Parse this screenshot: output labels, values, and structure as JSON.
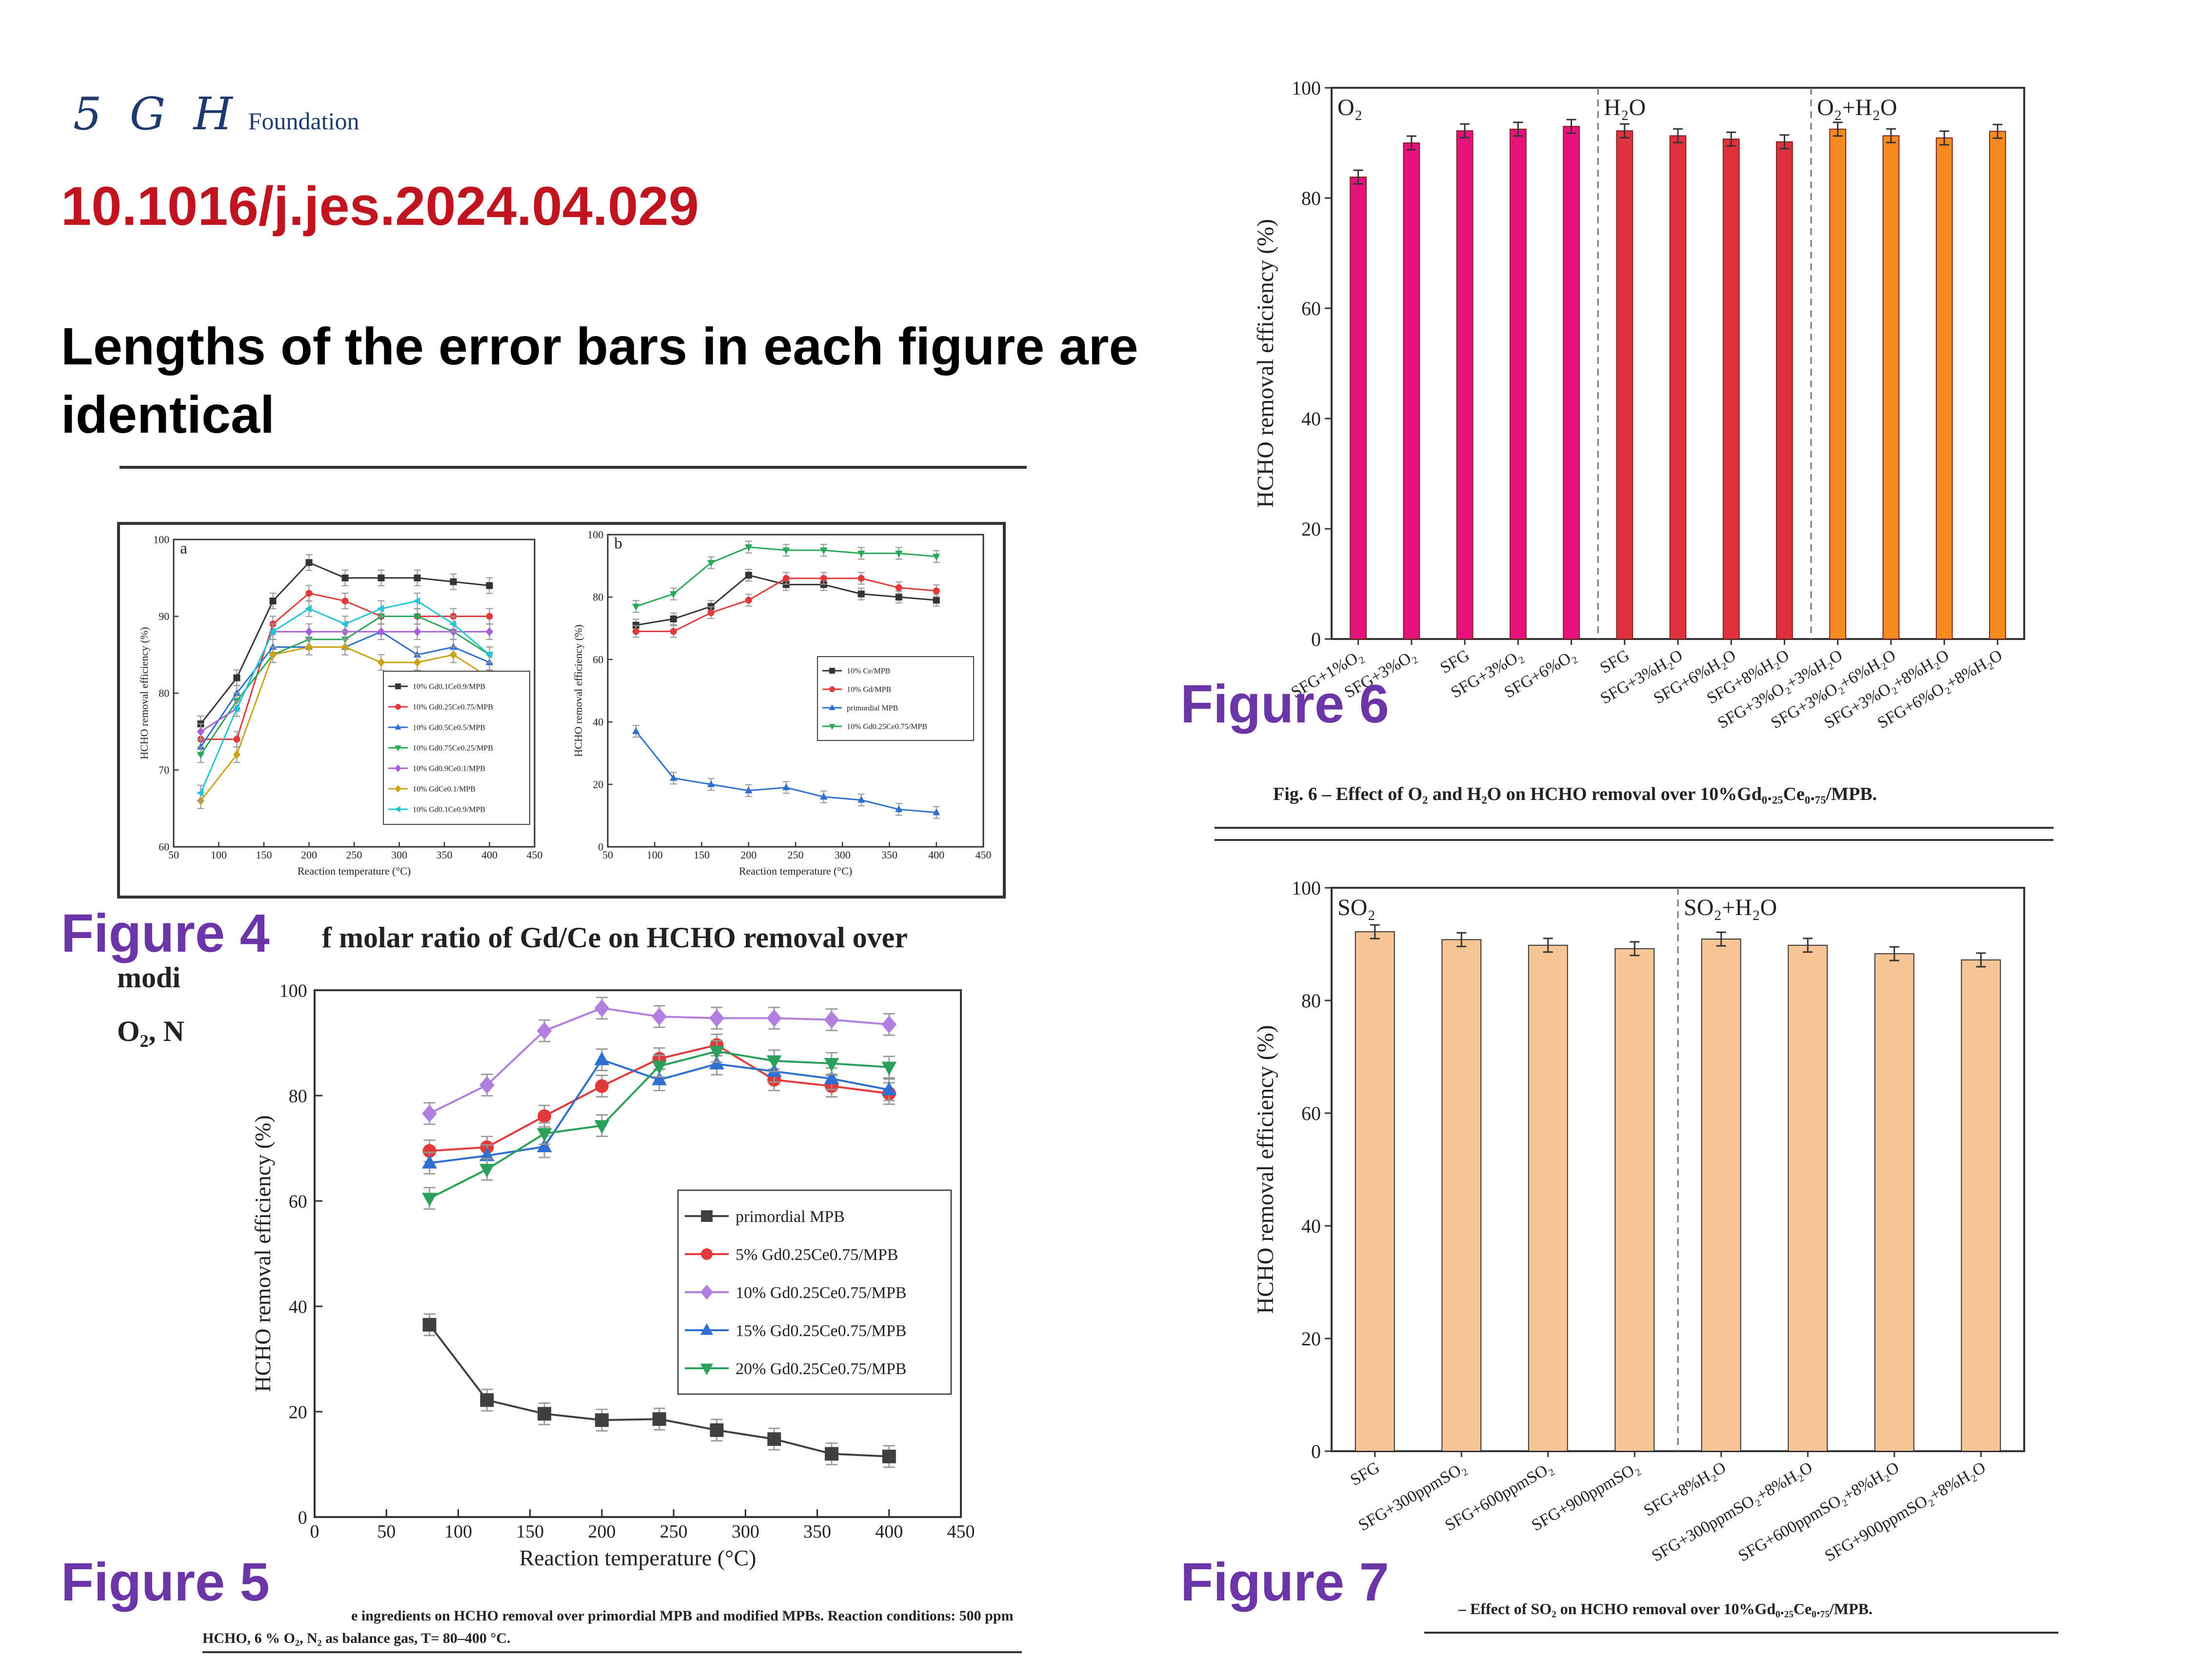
{
  "header": {
    "logo_mark": "5 G H",
    "logo_text": "Foundation",
    "doi": "10.1016/j.jes.2024.04.029",
    "headline": "Lengths of the error bars in each figure are identical"
  },
  "labels": {
    "fig4": "Figure 4",
    "fig5": "Figure 5",
    "fig6": "Figure 6",
    "fig7": "Figure 7"
  },
  "captions": {
    "fig4_partial_1": "f molar ratio of Gd/Ce on HCHO removal over",
    "fig4_partial_2": "modi",
    "fig4_partial_3": "O₂, N",
    "fig5_1": "e ingredients on HCHO removal over primordial MPB and modified MPBs. Reaction conditions: 500 ppm",
    "fig5_2": "HCHO, 6 % O₂, N₂ as balance gas, T= 80–400 °C.",
    "fig6": "Fig. 6 – Effect of O₂ and H₂O on HCHO removal over 10%Gd₀.₂₅Ce₀.₇₅/MPB.",
    "fig7": "– Effect of SO₂ on HCHO removal over 10%Gd₀.₂₅Ce₀.₇₅/MPB."
  },
  "colors": {
    "doi": "#c0141e",
    "figure_label": "#6b35a8",
    "fig6_o2": "#e8127c",
    "fig6_h2o": "#e0303c",
    "fig6_o2h2o": "#f58a1f",
    "fig7_bar": "#f8c596"
  },
  "chart_data": [
    {
      "id": "fig4a",
      "type": "line",
      "panel_label": "a",
      "xlabel": "Reaction temperature (°C)",
      "ylabel": "HCHO removal efficiency (%)",
      "xlim": [
        50,
        450
      ],
      "ylim": [
        60,
        100
      ],
      "xticks": [
        50,
        100,
        150,
        200,
        250,
        300,
        350,
        400,
        450
      ],
      "yticks": [
        60,
        70,
        80,
        90,
        100
      ],
      "x": [
        80,
        120,
        160,
        200,
        240,
        280,
        320,
        360,
        400
      ],
      "legend_position": "lower-right",
      "series": [
        {
          "name": "10% Gd0.1Ce0.9/MPB",
          "color": "#333333",
          "marker": "square",
          "values": [
            76,
            82,
            92,
            97,
            95,
            95,
            95,
            94.5,
            94
          ]
        },
        {
          "name": "10% Gd0.25Ce0.75/MPB",
          "color": "#e23a3a",
          "marker": "circle",
          "values": [
            74,
            74,
            89,
            93,
            92,
            90,
            90,
            90,
            90
          ]
        },
        {
          "name": "10% Gd0.5Ce0.5/MPB",
          "color": "#2f6fd0",
          "marker": "triangle",
          "values": [
            73,
            80,
            86,
            86,
            86,
            88,
            85,
            86,
            84
          ]
        },
        {
          "name": "10% Gd0.75Ce0.25/MPB",
          "color": "#2aa85a",
          "marker": "triangle-down",
          "values": [
            72,
            79,
            85,
            87,
            87,
            90,
            90,
            88,
            85
          ]
        },
        {
          "name": "10% Gd0.9Ce0.1/MPB",
          "color": "#a65fd6",
          "marker": "diamond",
          "values": [
            75,
            78,
            88,
            88,
            88,
            88,
            88,
            88,
            88
          ]
        },
        {
          "name": "10% GdCe0.1/MPB",
          "color": "#c9a41a",
          "marker": "diamond",
          "values": [
            66,
            72,
            85,
            86,
            86,
            84,
            84,
            85,
            82
          ]
        },
        {
          "name": "10% Gd0.1Ce0.9/MPB",
          "color": "#22c5d6",
          "marker": "triangle-left",
          "values": [
            67,
            78,
            88,
            91,
            89,
            91,
            92,
            89,
            85
          ]
        }
      ]
    },
    {
      "id": "fig4b",
      "type": "line",
      "panel_label": "b",
      "xlabel": "Reaction temperature (°C)",
      "ylabel": "HCHO removal efficiency (%)",
      "xlim": [
        50,
        450
      ],
      "ylim": [
        0,
        100
      ],
      "xticks": [
        50,
        100,
        150,
        200,
        250,
        300,
        350,
        400,
        450
      ],
      "yticks": [
        0,
        20,
        40,
        60,
        80,
        100
      ],
      "x": [
        80,
        120,
        160,
        200,
        240,
        280,
        320,
        360,
        400
      ],
      "legend_position": "right",
      "series": [
        {
          "name": "10% Ce/MPB",
          "color": "#333333",
          "marker": "square",
          "values": [
            71,
            73,
            77,
            87,
            84,
            84,
            81,
            80,
            79
          ]
        },
        {
          "name": "10% Gd/MPB",
          "color": "#e23a3a",
          "marker": "circle",
          "values": [
            69,
            69,
            75,
            79,
            86,
            86,
            86,
            83,
            82
          ]
        },
        {
          "name": "primordial MPB",
          "color": "#2f6fd0",
          "marker": "triangle",
          "values": [
            37,
            22,
            20,
            18,
            19,
            16,
            15,
            12,
            11
          ]
        },
        {
          "name": "10% Gd0.25Ce0.75/MPB",
          "color": "#2aa85a",
          "marker": "triangle-down",
          "values": [
            77,
            81,
            91,
            96,
            95,
            95,
            94,
            94,
            93
          ]
        }
      ]
    },
    {
      "id": "fig5",
      "type": "line",
      "xlabel": "Reaction temperature (°C)",
      "ylabel": "HCHO removal efficiency (%)",
      "xlim": [
        0,
        450
      ],
      "ylim": [
        0,
        100
      ],
      "xticks": [
        0,
        50,
        100,
        150,
        200,
        250,
        300,
        350,
        400,
        450
      ],
      "yticks": [
        0,
        20,
        40,
        60,
        80,
        100
      ],
      "x": [
        80,
        120,
        160,
        200,
        240,
        280,
        320,
        360,
        400
      ],
      "legend_position": "right",
      "series": [
        {
          "name": "primordial MPB",
          "color": "#404040",
          "marker": "square",
          "values": [
            36.5,
            22.2,
            19.6,
            18.4,
            18.6,
            16.5,
            14.8,
            12.0,
            11.5
          ]
        },
        {
          "name": "5% Gd0.25Ce0.75/MPB",
          "color": "#e23a3a",
          "marker": "circle",
          "values": [
            69.5,
            70.2,
            76.1,
            81.8,
            87.0,
            89.6,
            83.0,
            81.8,
            80.4
          ]
        },
        {
          "name": "10% Gd0.25Ce0.75/MPB",
          "color": "#b07fe0",
          "marker": "diamond",
          "values": [
            76.6,
            82.0,
            92.3,
            96.6,
            95.0,
            94.7,
            94.7,
            94.4,
            93.5
          ]
        },
        {
          "name": "15% Gd0.25Ce0.75/MPB",
          "color": "#2f6fd0",
          "marker": "triangle",
          "values": [
            67.2,
            68.6,
            70.3,
            86.8,
            83.0,
            86.0,
            84.6,
            83.2,
            81.1
          ]
        },
        {
          "name": "20% Gd0.25Ce0.75/MPB",
          "color": "#2aa05a",
          "marker": "triangle-down",
          "values": [
            60.5,
            66.0,
            72.8,
            74.3,
            85.6,
            88.4,
            86.6,
            86.1,
            85.4
          ]
        }
      ]
    },
    {
      "id": "fig6",
      "type": "bar",
      "ylabel": "HCHO removal efficiency (%)",
      "ylim": [
        0,
        100
      ],
      "yticks": [
        0,
        20,
        40,
        60,
        80,
        100
      ],
      "groups": [
        "O₂",
        "H₂O",
        "O₂+H₂O"
      ],
      "categories": [
        "SFG+1%O₂",
        "SFG+3%O₂",
        "SFG",
        "SFG+3%O₂",
        "SFG+6%O₂",
        "SFG",
        "SFG+3%H₂O",
        "SFG+6%H₂O",
        "SFG+8%H₂O",
        "SFG+3%O₂+3%H₂O",
        "SFG+3%O₂+6%H₂O",
        "SFG+3%O₂+8%H₂O",
        "SFG+6%O₂+8%H₂O"
      ],
      "values": [
        83.8,
        90.0,
        92.2,
        92.5,
        93.0,
        92.2,
        91.3,
        90.7,
        90.2,
        92.5,
        91.3,
        90.9,
        92.1
      ],
      "group_of_bar": [
        0,
        0,
        0,
        0,
        0,
        1,
        1,
        1,
        1,
        2,
        2,
        2,
        2
      ]
    },
    {
      "id": "fig7",
      "type": "bar",
      "ylabel": "HCHO removal efficiency (%)",
      "ylim": [
        0,
        100
      ],
      "yticks": [
        0,
        20,
        40,
        60,
        80,
        100
      ],
      "groups": [
        "SO₂",
        "SO₂+H₂O"
      ],
      "categories": [
        "SFG",
        "SFG+300ppmSO₂",
        "SFG+600ppmSO₂",
        "SFG+900ppmSO₂",
        "SFG+8%H₂O",
        "SFG+300ppmSO₂+8%H₂O",
        "SFG+600ppmSO₂+8%H₂O",
        "SFG+900ppmSO₂+8%H₂O"
      ],
      "values": [
        92.2,
        90.8,
        89.8,
        89.2,
        90.9,
        89.8,
        88.3,
        87.2
      ]
    }
  ]
}
